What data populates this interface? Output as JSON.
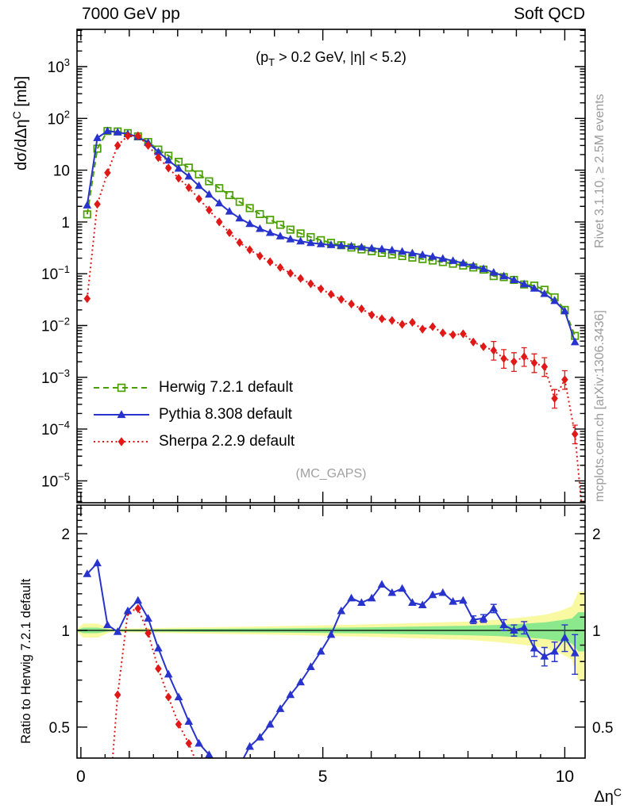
{
  "header": {
    "left_title": "7000 GeV pp",
    "right_title": "Soft QCD"
  },
  "annotation": {
    "p1": "(p",
    "sub": "T",
    "p2": " > 0.2 GeV, |η| < 5.2)"
  },
  "watermark": "(MC_GAPS)",
  "side_text": {
    "top": "Rivet 3.1.10, ≥ 2.5M events",
    "bottom": "mcplots.cern.ch [arXiv:1306.3436]"
  },
  "axis_labels": {
    "main_y_pre": "dσ/dΔη",
    "main_y_sup": "C",
    "main_y_post": " [mb]",
    "ratio_y": "Ratio to Herwig 7.2.1 default",
    "x_pre": "Δη",
    "x_sup": "C"
  },
  "legend": [
    {
      "label": "Herwig 7.2.1 default",
      "color": "#4aa000",
      "line": "dashed",
      "marker": "square-open"
    },
    {
      "label": "Pythia 8.308 default",
      "color": "#2733cc",
      "line": "solid",
      "marker": "triangle"
    },
    {
      "label": "Sherpa 2.2.9 default",
      "color": "#e01818",
      "line": "dotted",
      "marker": "diamond"
    }
  ],
  "colors": {
    "herwig": "#4aa000",
    "pythia": "#2733cc",
    "sherpa": "#e01818",
    "band_yellow": "#f9f9a2",
    "band_green": "#8ce88c",
    "gray_text": "#9b9b9b"
  },
  "chart_data": [
    {
      "type": "line",
      "title": "7000 GeV pp — Soft QCD",
      "subtitle": "(pT > 0.2 GeV, |η| < 5.2)",
      "xlabel": "Δη^C",
      "ylabel": "dσ/dΔη^C [mb]",
      "x_scale": "linear",
      "x_range": [
        -0.08,
        10.42
      ],
      "x_ticks": [
        0,
        5,
        10
      ],
      "y_scale": "log",
      "y_range": [
        3.8e-06,
        5200
      ],
      "y_tick_exponents": [
        3,
        2,
        1,
        0,
        -1,
        -2,
        -3,
        -4,
        -5
      ],
      "grid": false,
      "legend_position": "middle-left",
      "x": [
        0.13,
        0.34,
        0.55,
        0.76,
        0.97,
        1.18,
        1.39,
        1.6,
        1.81,
        2.02,
        2.23,
        2.44,
        2.65,
        2.86,
        3.07,
        3.28,
        3.49,
        3.7,
        3.91,
        4.12,
        4.33,
        4.54,
        4.75,
        4.96,
        5.17,
        5.38,
        5.59,
        5.8,
        6.01,
        6.22,
        6.43,
        6.64,
        6.85,
        7.06,
        7.27,
        7.48,
        7.69,
        7.9,
        8.11,
        8.32,
        8.53,
        8.74,
        8.95,
        9.16,
        9.37,
        9.58,
        9.79,
        10.0,
        10.21
      ],
      "series": [
        {
          "name": "Herwig 7.2.1 default",
          "values": [
            1.4,
            26,
            57,
            56,
            52,
            45,
            35,
            25,
            19,
            14.5,
            11.2,
            8.3,
            6.1,
            4.5,
            3.3,
            2.45,
            1.85,
            1.42,
            1.1,
            0.88,
            0.71,
            0.6,
            0.51,
            0.445,
            0.395,
            0.355,
            0.32,
            0.295,
            0.272,
            0.252,
            0.235,
            0.219,
            0.205,
            0.192,
            0.18,
            0.168,
            0.156,
            0.144,
            0.132,
            0.12,
            0.09,
            0.086,
            0.076,
            0.062,
            0.059,
            0.049,
            0.035,
            0.02,
            0.0063
          ]
        },
        {
          "name": "Pythia 8.308 default",
          "values": [
            2.1,
            42,
            57,
            54,
            50,
            44,
            34,
            22.5,
            15.5,
            10.8,
            7.6,
            5.0,
            3.4,
            2.3,
            1.6,
            1.18,
            0.92,
            0.74,
            0.62,
            0.53,
            0.465,
            0.425,
            0.395,
            0.375,
            0.36,
            0.35,
            0.34,
            0.325,
            0.31,
            0.3,
            0.285,
            0.268,
            0.25,
            0.232,
            0.214,
            0.196,
            0.178,
            0.16,
            0.142,
            0.124,
            0.106,
            0.09,
            0.076,
            0.063,
            0.052,
            0.041,
            0.03,
            0.019,
            0.0048
          ]
        },
        {
          "name": "Sherpa 2.2.9 default",
          "values": [
            0.033,
            2.2,
            8.9,
            30,
            46,
            46,
            30,
            17.5,
            11,
            7.0,
            4.6,
            2.8,
            1.7,
            1.0,
            0.62,
            0.4,
            0.29,
            0.22,
            0.17,
            0.132,
            0.102,
            0.081,
            0.064,
            0.051,
            0.04,
            0.032,
            0.026,
            0.021,
            0.016,
            0.0135,
            0.0125,
            0.0105,
            0.0115,
            0.0085,
            0.0095,
            0.0072,
            0.0066,
            0.0069,
            0.0048,
            0.0039,
            0.0033,
            0.0023,
            0.002,
            0.0025,
            0.0019,
            0.0016,
            0.00039,
            0.0009,
            8e-05
          ],
          "err_rel_tail_from_index": 40,
          "err_rel": 0.35
        }
      ],
      "sherpa_tail": {
        "x": [
          10.21,
          10.34
        ],
        "values": [
          8e-05,
          4e-06
        ]
      },
      "annotations": [
        "(MC_GAPS)"
      ]
    },
    {
      "type": "line",
      "ylabel": "Ratio to Herwig 7.2.1 default",
      "x_scale": "linear",
      "x_range": [
        -0.08,
        10.42
      ],
      "x_ticks": [
        0,
        5,
        10
      ],
      "y_scale": "log",
      "y_range": [
        0.4,
        2.46
      ],
      "y_ticks": [
        0.5,
        1,
        2
      ],
      "reference_line": 1.0,
      "x": [
        0.13,
        0.34,
        0.55,
        0.76,
        0.97,
        1.18,
        1.39,
        1.6,
        1.81,
        2.02,
        2.23,
        2.44,
        2.65,
        2.86,
        3.07,
        3.28,
        3.49,
        3.7,
        3.91,
        4.12,
        4.33,
        4.54,
        4.75,
        4.96,
        5.17,
        5.38,
        5.59,
        5.8,
        6.01,
        6.22,
        6.43,
        6.64,
        6.85,
        7.06,
        7.27,
        7.48,
        7.69,
        7.9,
        8.11,
        8.32,
        8.53,
        8.74,
        8.95,
        9.16,
        9.37,
        9.58,
        9.79,
        10.0,
        10.21
      ],
      "series": [
        {
          "name": "Pythia 8.308 default / Herwig",
          "values": [
            1.5,
            1.62,
            1.04,
            0.99,
            1.15,
            1.24,
            1.09,
            0.88,
            0.73,
            0.62,
            0.52,
            0.445,
            0.41,
            0.37,
            0.35,
            0.38,
            0.435,
            0.465,
            0.51,
            0.57,
            0.63,
            0.69,
            0.77,
            0.86,
            0.97,
            1.15,
            1.26,
            1.22,
            1.26,
            1.39,
            1.31,
            1.35,
            1.22,
            1.2,
            1.29,
            1.31,
            1.23,
            1.24,
            1.08,
            1.09,
            1.17,
            1.04,
            1.0,
            1.02,
            0.88,
            0.83,
            0.86,
            0.95,
            0.85
          ],
          "errors": [
            0.02,
            0.02,
            0.02,
            0.02,
            0.02,
            0.02,
            0.02,
            0.02,
            0.02,
            0.02,
            0.02,
            0.02,
            0.02,
            0.02,
            0.02,
            0.02,
            0.02,
            0.02,
            0.02,
            0.02,
            0.02,
            0.02,
            0.02,
            0.02,
            0.02,
            0.02,
            0.02,
            0.02,
            0.02,
            0.02,
            0.02,
            0.02,
            0.02,
            0.02,
            0.02,
            0.02,
            0.02,
            0.02,
            0.03,
            0.03,
            0.035,
            0.04,
            0.04,
            0.045,
            0.05,
            0.055,
            0.06,
            0.09,
            0.12
          ]
        },
        {
          "name": "Sherpa 2.2.9 default / Herwig",
          "values": [
            null,
            null,
            0.25,
            0.63,
            1.14,
            1.17,
            0.98,
            0.76,
            0.62,
            0.51,
            0.445,
            0.37,
            0.28,
            null,
            null,
            null,
            null,
            null,
            null,
            null,
            null,
            null,
            null,
            null,
            null,
            null,
            null,
            null,
            null,
            null,
            null,
            null,
            null,
            null,
            null,
            null,
            null,
            null,
            null,
            null,
            null,
            null,
            null,
            null,
            null,
            null,
            null,
            null,
            null
          ]
        }
      ],
      "uncertainty_band": {
        "x": [
          -0.08,
          0.05,
          0.35,
          0.6,
          2.0,
          4.0,
          6.0,
          7.0,
          8.0,
          8.6,
          9.2,
          9.6,
          9.9,
          10.15,
          10.28,
          10.42
        ],
        "yellow_hi": [
          1.01,
          1.05,
          1.05,
          1.012,
          1.02,
          1.03,
          1.045,
          1.055,
          1.065,
          1.08,
          1.1,
          1.12,
          1.15,
          1.19,
          1.32,
          1.32
        ],
        "yellow_lo": [
          0.99,
          0.95,
          0.95,
          0.988,
          0.98,
          0.97,
          0.955,
          0.945,
          0.935,
          0.92,
          0.9,
          0.88,
          0.85,
          0.81,
          0.7,
          0.7
        ],
        "green_hi": [
          1.005,
          1.02,
          1.02,
          1.006,
          1.01,
          1.015,
          1.022,
          1.028,
          1.034,
          1.04,
          1.05,
          1.06,
          1.075,
          1.09,
          1.14,
          1.14
        ],
        "green_lo": [
          0.995,
          0.98,
          0.98,
          0.994,
          0.99,
          0.985,
          0.978,
          0.972,
          0.966,
          0.96,
          0.95,
          0.94,
          0.925,
          0.91,
          0.86,
          0.86
        ]
      }
    }
  ]
}
